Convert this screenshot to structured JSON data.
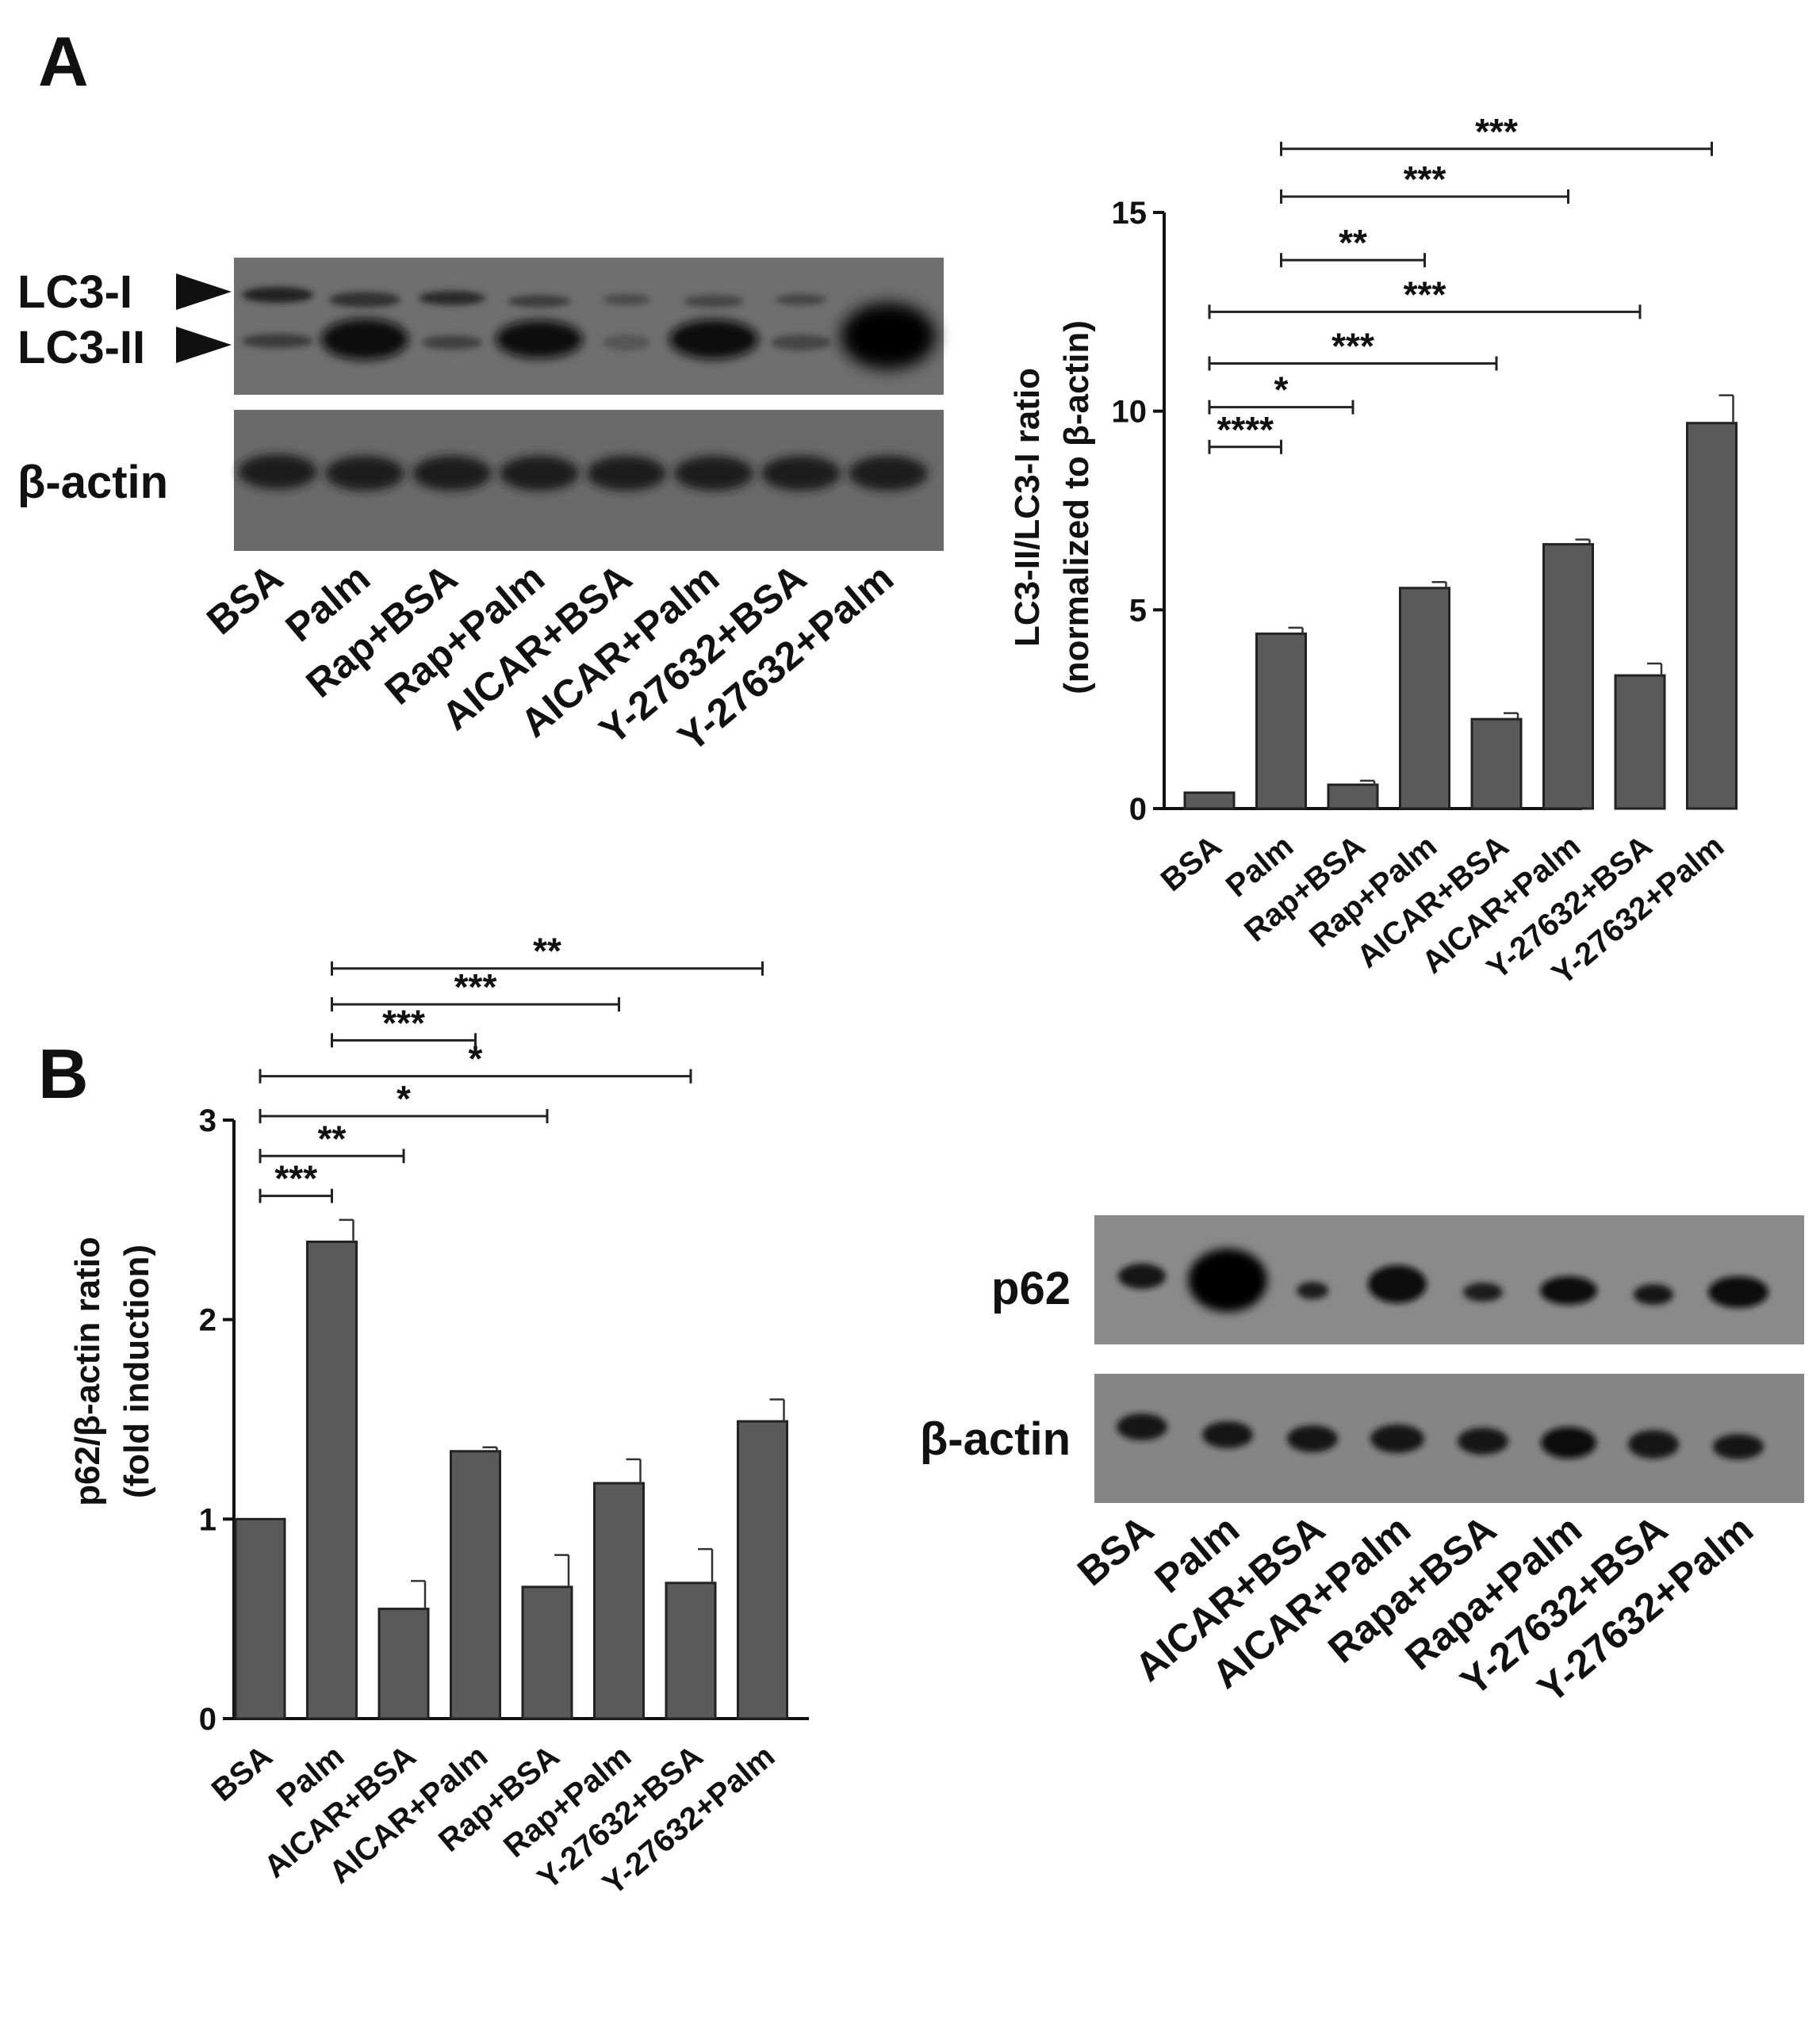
{
  "panels": [
    {
      "letter": "A"
    },
    {
      "letter": "B"
    }
  ],
  "blots": [
    {
      "rows": [
        {
          "label": "LC3-I",
          "arrow": true
        },
        {
          "label": "LC3-II",
          "arrow": true
        },
        {
          "label": "β-actin",
          "arrow": false
        }
      ],
      "lanes": [
        "BSA",
        "Palm",
        "Rap+BSA",
        "Rap+Palm",
        "AICAR+BSA",
        "AICAR+Palm",
        "Y-27632+BSA",
        "Y-27632+Palm"
      ]
    },
    {
      "rows": [
        {
          "label": "p62",
          "arrow": false
        },
        {
          "label": "β-actin",
          "arrow": false
        }
      ],
      "lanes": [
        "BSA",
        "Palm",
        "AICAR+BSA",
        "AICAR+Palm",
        "Rapa+BSA",
        "Rapa+Palm",
        "Y-27632+BSA",
        "Y-27632+Palm"
      ]
    }
  ],
  "chart_data": [
    {
      "type": "bar",
      "title": "",
      "ylabel": "LC3-II/LC3-I ratio",
      "ylabel2": "(normalized to β-actin)",
      "ylim": [
        0,
        15
      ],
      "yticks": [
        0,
        5,
        10,
        15
      ],
      "categories": [
        "BSA",
        "Palm",
        "Rap+BSA",
        "Rap+Palm",
        "AICAR+BSA",
        "AICAR+Palm",
        "Y-27632+BSA",
        "Y-27632+Palm"
      ],
      "values": [
        0.4,
        4.4,
        0.6,
        5.55,
        2.25,
        6.65,
        3.35,
        9.7
      ],
      "errors": [
        0,
        0.15,
        0.1,
        0.15,
        0.15,
        0.12,
        0.3,
        0.7
      ],
      "bar_color": "#5a5a5a",
      "significance": [
        {
          "from": 0,
          "to": 1,
          "y": 9.1,
          "stars": "****"
        },
        {
          "from": 0,
          "to": 2,
          "y": 10.1,
          "stars": "*"
        },
        {
          "from": 0,
          "to": 4,
          "y": 11.2,
          "stars": "***"
        },
        {
          "from": 0,
          "to": 6,
          "y": 12.5,
          "stars": "***"
        },
        {
          "from": 1,
          "to": 3,
          "y": 13.8,
          "stars": "**"
        },
        {
          "from": 1,
          "to": 5,
          "y": 15.4,
          "stars": "***"
        },
        {
          "from": 1,
          "to": 7,
          "y": 16.6,
          "stars": "***"
        }
      ]
    },
    {
      "type": "bar",
      "title": "",
      "ylabel": "p62/β-actin ratio",
      "ylabel2": "(fold induction)",
      "ylim": [
        0,
        3
      ],
      "yticks": [
        0,
        1,
        2,
        3
      ],
      "categories": [
        "BSA",
        "Palm",
        "AICAR+BSA",
        "AICAR+Palm",
        "Rap+BSA",
        "Rap+Palm",
        "Y-27632+BSA",
        "Y-27632+Palm"
      ],
      "values": [
        1.0,
        2.39,
        0.55,
        1.34,
        0.66,
        1.18,
        0.68,
        1.49
      ],
      "errors": [
        0,
        0.11,
        0.14,
        0.02,
        0.16,
        0.12,
        0.17,
        0.11
      ],
      "bar_color": "#5a5a5a",
      "significance": [
        {
          "from": 0,
          "to": 1,
          "y": 2.62,
          "stars": "***"
        },
        {
          "from": 0,
          "to": 2,
          "y": 2.82,
          "stars": "**"
        },
        {
          "from": 0,
          "to": 4,
          "y": 3.02,
          "stars": "*"
        },
        {
          "from": 0,
          "to": 6,
          "y": 3.22,
          "stars": "*"
        },
        {
          "from": 1,
          "to": 3,
          "y": 3.4,
          "stars": "***"
        },
        {
          "from": 1,
          "to": 5,
          "y": 3.58,
          "stars": "***"
        },
        {
          "from": 1,
          "to": 7,
          "y": 3.76,
          "stars": "**"
        }
      ]
    }
  ]
}
